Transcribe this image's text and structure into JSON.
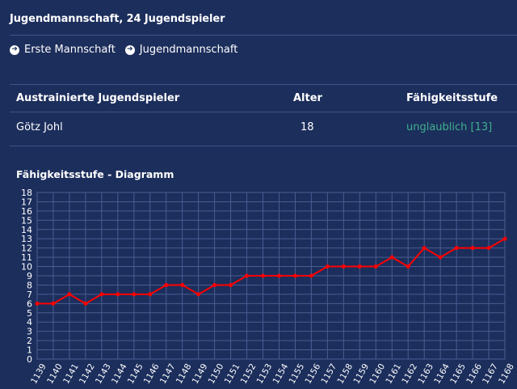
{
  "header": {
    "title": "Jugendmannschaft, 24 Jugendspieler"
  },
  "nav": {
    "links": [
      {
        "label": "Erste Mannschaft",
        "icon": "arrow-right-circle-icon"
      },
      {
        "label": "Jugendmannschaft",
        "icon": "arrow-right-circle-icon"
      }
    ]
  },
  "table": {
    "headers": [
      "Austrainierte Jugendspieler",
      "Alter",
      "Fähigkeitsstufe"
    ],
    "rows": [
      {
        "name": "Götz Johl",
        "age": "18",
        "skill": "unglaublich [13]"
      }
    ]
  },
  "colors": {
    "background": "#1c2e5c",
    "accent_green": "#3fb08d",
    "line_red": "#ff0000"
  },
  "chart_data": {
    "type": "line",
    "title": "Fähigkeitsstufe - Diagramm",
    "xlabel": "",
    "ylabel": "",
    "ylim": [
      0,
      18
    ],
    "yticks": [
      0,
      1,
      2,
      3,
      4,
      5,
      6,
      7,
      8,
      9,
      10,
      11,
      12,
      13,
      14,
      15,
      16,
      17,
      18
    ],
    "grid": true,
    "categories": [
      "1139",
      "1140",
      "1141",
      "1142",
      "1143",
      "1144",
      "1145",
      "1146",
      "1147",
      "1148",
      "1149",
      "1150",
      "1151",
      "1152",
      "1153",
      "1154",
      "1155",
      "1156",
      "1157",
      "1158",
      "1159",
      "1160",
      "1161",
      "1162",
      "1163",
      "1164",
      "1165",
      "1166",
      "1167",
      "1168"
    ],
    "series": [
      {
        "values": [
          6,
          6,
          7,
          6,
          7,
          7,
          7,
          7,
          8,
          8,
          7,
          8,
          8,
          9,
          9,
          9,
          9,
          9,
          10,
          10,
          10,
          10,
          11,
          10,
          12,
          11,
          12,
          12,
          12,
          13
        ],
        "color": "#ff0000"
      }
    ]
  }
}
